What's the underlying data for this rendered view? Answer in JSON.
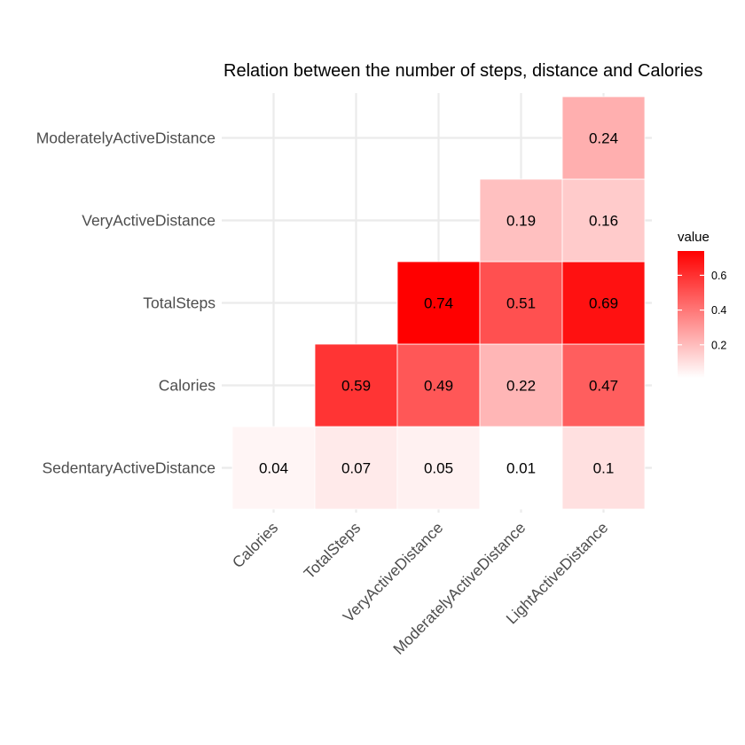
{
  "chart_data": {
    "type": "heatmap",
    "title": "Relation between the number of steps, distance and Calories",
    "x_categories": [
      "Calories",
      "TotalSteps",
      "VeryActiveDistance",
      "ModeratelyActiveDistance",
      "LightActiveDistance"
    ],
    "y_categories": [
      "SedentaryActiveDistance",
      "Calories",
      "TotalSteps",
      "VeryActiveDistance",
      "ModeratelyActiveDistance"
    ],
    "cells": [
      {
        "x": "Calories",
        "y": "SedentaryActiveDistance",
        "value": 0.04,
        "label": "0.04"
      },
      {
        "x": "TotalSteps",
        "y": "SedentaryActiveDistance",
        "value": 0.07,
        "label": "0.07"
      },
      {
        "x": "VeryActiveDistance",
        "y": "SedentaryActiveDistance",
        "value": 0.05,
        "label": "0.05"
      },
      {
        "x": "ModeratelyActiveDistance",
        "y": "SedentaryActiveDistance",
        "value": 0.01,
        "label": "0.01"
      },
      {
        "x": "LightActiveDistance",
        "y": "SedentaryActiveDistance",
        "value": 0.1,
        "label": "0.1"
      },
      {
        "x": "TotalSteps",
        "y": "Calories",
        "value": 0.59,
        "label": "0.59"
      },
      {
        "x": "VeryActiveDistance",
        "y": "Calories",
        "value": 0.49,
        "label": "0.49"
      },
      {
        "x": "ModeratelyActiveDistance",
        "y": "Calories",
        "value": 0.22,
        "label": "0.22"
      },
      {
        "x": "LightActiveDistance",
        "y": "Calories",
        "value": 0.47,
        "label": "0.47"
      },
      {
        "x": "VeryActiveDistance",
        "y": "TotalSteps",
        "value": 0.74,
        "label": "0.74"
      },
      {
        "x": "ModeratelyActiveDistance",
        "y": "TotalSteps",
        "value": 0.51,
        "label": "0.51"
      },
      {
        "x": "LightActiveDistance",
        "y": "TotalSteps",
        "value": 0.69,
        "label": "0.69"
      },
      {
        "x": "ModeratelyActiveDistance",
        "y": "VeryActiveDistance",
        "value": 0.19,
        "label": "0.19"
      },
      {
        "x": "LightActiveDistance",
        "y": "VeryActiveDistance",
        "value": 0.16,
        "label": "0.16"
      },
      {
        "x": "LightActiveDistance",
        "y": "ModeratelyActiveDistance",
        "value": 0.24,
        "label": "0.24"
      }
    ],
    "legend": {
      "title": "value",
      "ticks": [
        "0.2",
        "0.4",
        "0.6"
      ],
      "tick_values": [
        0.2,
        0.4,
        0.6
      ],
      "range": [
        0.01,
        0.74
      ],
      "placement": "right"
    },
    "colors": {
      "low": "#ffffff",
      "high": "#ff0000",
      "grid": "#ebebeb",
      "background": "#ffffff"
    },
    "grid": true
  }
}
